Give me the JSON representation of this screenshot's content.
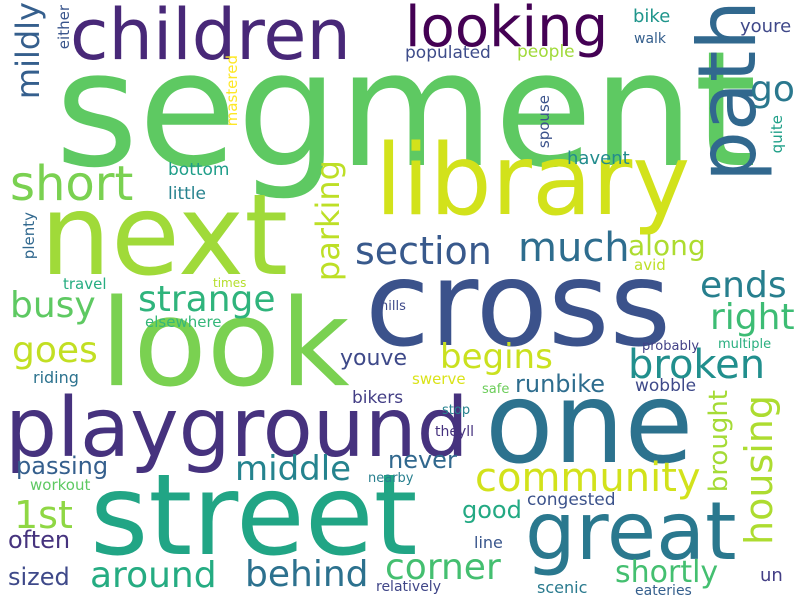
{
  "words": [
    {
      "text": "segment",
      "color": "#5ec962"
    },
    {
      "text": "next",
      "color": "#a0da39"
    },
    {
      "text": "look",
      "color": "#7ad151"
    },
    {
      "text": "cross",
      "color": "#3b528b"
    },
    {
      "text": "street",
      "color": "#21a585"
    },
    {
      "text": "one",
      "color": "#2c728e"
    },
    {
      "text": "playground",
      "color": "#46327e"
    },
    {
      "text": "library",
      "color": "#d2e21b"
    },
    {
      "text": "children",
      "color": "#482878"
    },
    {
      "text": "great",
      "color": "#2a788e"
    },
    {
      "text": "path",
      "color": "#31688e"
    },
    {
      "text": "looking",
      "color": "#440154"
    },
    {
      "text": "short",
      "color": "#7ad151"
    },
    {
      "text": "strange",
      "color": "#2fb47c"
    },
    {
      "text": "section",
      "color": "#38598c"
    },
    {
      "text": "much",
      "color": "#2e6d8e"
    },
    {
      "text": "parking",
      "color": "#bddf26"
    },
    {
      "text": "community",
      "color": "#d2e21b"
    },
    {
      "text": "housing",
      "color": "#addc30"
    },
    {
      "text": "broken",
      "color": "#218f8d"
    },
    {
      "text": "busy",
      "color": "#5ec962"
    },
    {
      "text": "goes",
      "color": "#c2df23"
    },
    {
      "text": "middle",
      "color": "#25838e"
    },
    {
      "text": "around",
      "color": "#25ac82"
    },
    {
      "text": "behind",
      "color": "#2c718e"
    },
    {
      "text": "corner",
      "color": "#44bf70"
    },
    {
      "text": "begins",
      "color": "#cae11f"
    },
    {
      "text": "ends",
      "color": "#277f8e"
    },
    {
      "text": "right",
      "color": "#3dbc74"
    },
    {
      "text": "mildly",
      "color": "#355f8d"
    },
    {
      "text": "go",
      "color": "#2a788e"
    },
    {
      "text": "along",
      "color": "#addc30"
    },
    {
      "text": "shortly",
      "color": "#44bf70"
    },
    {
      "text": "brought",
      "color": "#a5db36"
    },
    {
      "text": "1st",
      "color": "#8fd744"
    },
    {
      "text": "passing",
      "color": "#355f8d"
    },
    {
      "text": "youve",
      "color": "#3e4989"
    },
    {
      "text": "never",
      "color": "#31688e"
    },
    {
      "text": "runbike",
      "color": "#2e6d8e"
    },
    {
      "text": "often",
      "color": "#46337e"
    },
    {
      "text": "sized",
      "color": "#3e4989"
    },
    {
      "text": "good",
      "color": "#23a983"
    },
    {
      "text": "bike",
      "color": "#1f958b"
    },
    {
      "text": "youre",
      "color": "#3f4889"
    },
    {
      "text": "either",
      "color": "#39558c"
    },
    {
      "text": "walk",
      "color": "#355f8d"
    },
    {
      "text": "populated",
      "color": "#3e4c8a"
    },
    {
      "text": "people",
      "color": "#a0da39"
    },
    {
      "text": "mastered",
      "color": "#fde725"
    },
    {
      "text": "spouse",
      "color": "#3b528b"
    },
    {
      "text": "quite",
      "color": "#1fa088"
    },
    {
      "text": "havent",
      "color": "#228c8d"
    },
    {
      "text": "bottom",
      "color": "#1f9e89"
    },
    {
      "text": "little",
      "color": "#26828e"
    },
    {
      "text": "plenty",
      "color": "#31688e"
    },
    {
      "text": "travel",
      "color": "#26ad81"
    },
    {
      "text": "times",
      "color": "#b5de2b"
    },
    {
      "text": "avid",
      "color": "#bddf26"
    },
    {
      "text": "hills",
      "color": "#3e4989"
    },
    {
      "text": "elsewhere",
      "color": "#35b779"
    },
    {
      "text": "probably",
      "color": "#424186"
    },
    {
      "text": "multiple",
      "color": "#29af7f"
    },
    {
      "text": "riding",
      "color": "#2c728e"
    },
    {
      "text": "swerve",
      "color": "#dae319"
    },
    {
      "text": "safe",
      "color": "#6ccd5a"
    },
    {
      "text": "wobble",
      "color": "#3e4989"
    },
    {
      "text": "bikers",
      "color": "#433e85"
    },
    {
      "text": "stop",
      "color": "#26828e"
    },
    {
      "text": "theyll",
      "color": "#46327e"
    },
    {
      "text": "workout",
      "color": "#5ec962"
    },
    {
      "text": "nearby",
      "color": "#277f8e"
    },
    {
      "text": "congested",
      "color": "#3b528b"
    },
    {
      "text": "line",
      "color": "#39568c"
    },
    {
      "text": "scenic",
      "color": "#297a8e"
    },
    {
      "text": "un",
      "color": "#433e85"
    },
    {
      "text": "relatively",
      "color": "#404688"
    },
    {
      "text": "eateries",
      "color": "#355f8d"
    }
  ]
}
